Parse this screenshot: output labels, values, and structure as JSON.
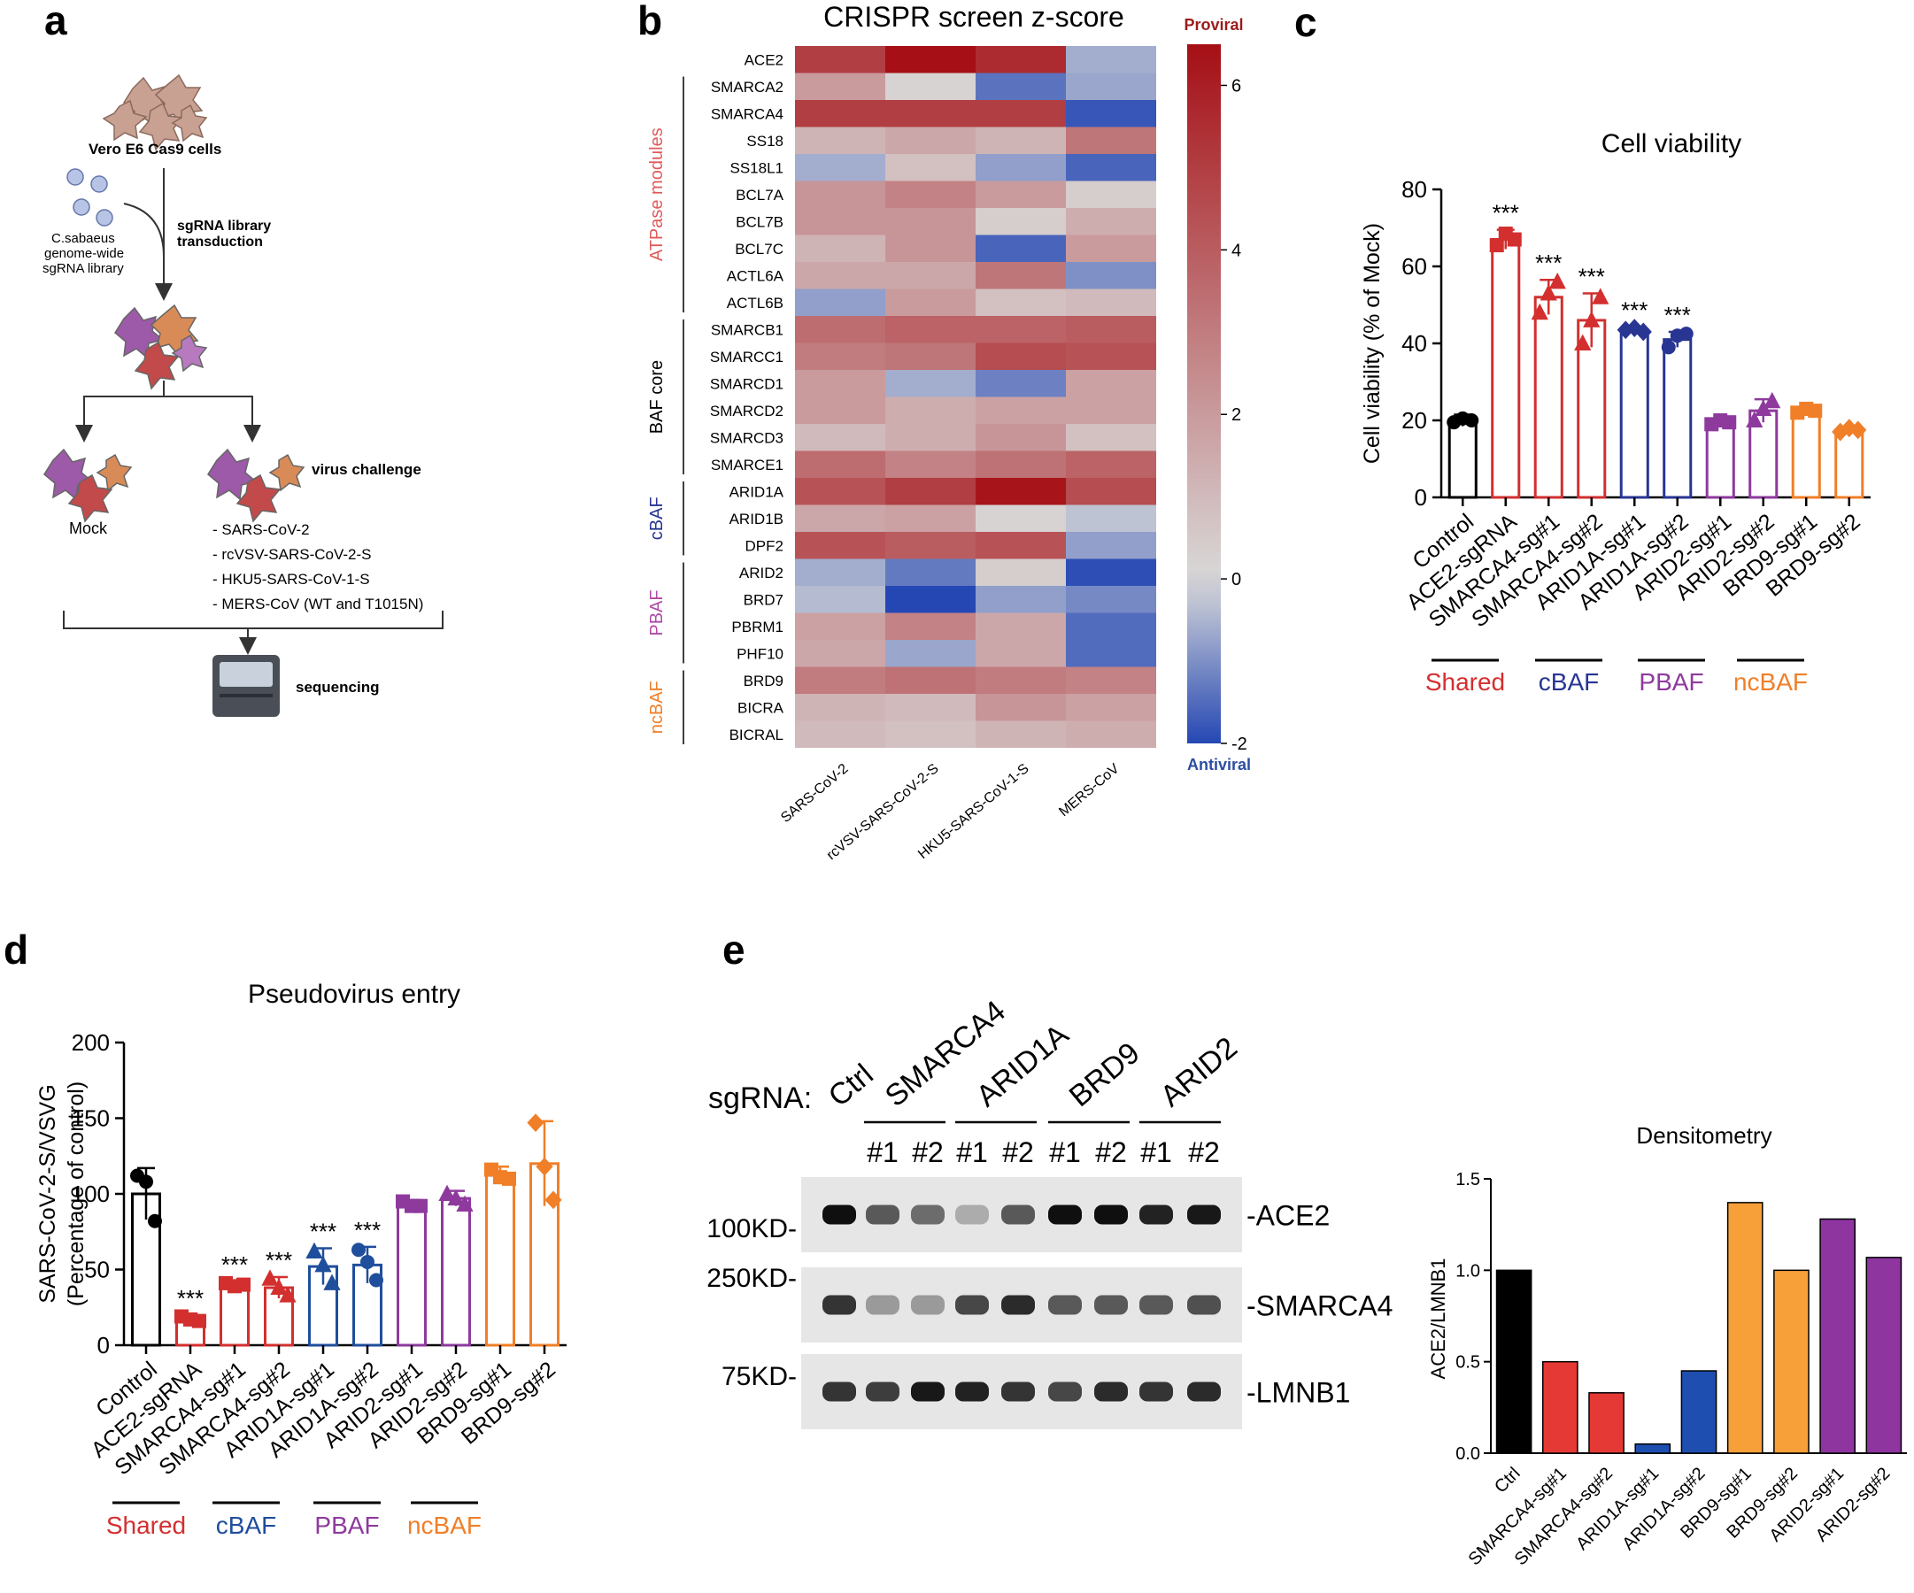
{
  "panel_letters": {
    "a": "a",
    "b": "b",
    "c": "c",
    "d": "d",
    "e": "e"
  },
  "schematic": {
    "cells": "Vero E6 Cas9 cells",
    "library": [
      "C.sabaeus",
      "genome-wide",
      "sgRNA library"
    ],
    "transduction": [
      "sgRNA library",
      "transduction"
    ],
    "mock": "Mock",
    "virus_challenge": "virus challenge",
    "viruses": [
      "- SARS-CoV-2",
      "- rcVSV-SARS-CoV-2-S",
      "- HKU5-SARS-CoV-1-S",
      "- MERS-CoV (WT and T1015N)"
    ],
    "sequencing": "sequencing"
  },
  "colors": {
    "shared": "#d32f2f",
    "cbaf": "#283593",
    "pbaf": "#8e3a9d",
    "ncbaf": "#f07f28",
    "control": "#000000",
    "heat_high": "#a50f15",
    "heat_low": "#2547b3",
    "heat_mid": "#d9d9d9"
  },
  "chart_data": [
    {
      "type": "heatmap",
      "title": "CRISPR screen z-score",
      "rows": [
        "ACE2",
        "SMARCA2",
        "SMARCA4",
        "SS18",
        "SS18L1",
        "BCL7A",
        "BCL7B",
        "BCL7C",
        "ACTL6A",
        "ACTL6B",
        "SMARCB1",
        "SMARCC1",
        "SMARCD1",
        "SMARCD2",
        "SMARCD3",
        "SMARCE1",
        "ARID1A",
        "ARID1B",
        "DPF2",
        "ARID2",
        "BRD7",
        "PBRM1",
        "PHF10",
        "BRD9",
        "BICRA",
        "BICRAL"
      ],
      "columns": [
        "SARS-CoV-2",
        "rcVSV-SARS-CoV-2-S",
        "HKU5-SARS-CoV-1-S",
        "MERS-CoV"
      ],
      "values": [
        [
          5.0,
          6.5,
          5.6,
          -0.6
        ],
        [
          2.0,
          0.2,
          -1.4,
          -0.7
        ],
        [
          5.0,
          5.0,
          5.0,
          -1.8
        ],
        [
          1.2,
          1.6,
          1.2,
          3.2
        ],
        [
          -0.6,
          0.8,
          -0.8,
          -1.6
        ],
        [
          2.2,
          2.8,
          2.0,
          0.4
        ],
        [
          2.2,
          2.2,
          0.4,
          1.4
        ],
        [
          1.2,
          2.2,
          -1.6,
          2.0
        ],
        [
          1.6,
          1.6,
          3.2,
          -1.0
        ],
        [
          -0.8,
          2.0,
          0.8,
          1.0
        ],
        [
          3.5,
          3.8,
          3.8,
          4.0
        ],
        [
          3.0,
          3.2,
          4.5,
          4.3
        ],
        [
          2.0,
          -0.6,
          -1.2,
          1.8
        ],
        [
          2.0,
          1.4,
          1.8,
          1.8
        ],
        [
          1.0,
          1.4,
          2.2,
          0.8
        ],
        [
          3.5,
          2.8,
          3.3,
          3.8
        ],
        [
          4.3,
          5.0,
          6.3,
          4.5
        ],
        [
          1.6,
          1.8,
          0.2,
          -0.3
        ],
        [
          4.3,
          4.0,
          4.3,
          -0.8
        ],
        [
          -0.6,
          -1.3,
          0.4,
          -1.9
        ],
        [
          -0.4,
          -2.2,
          -0.8,
          -1.1
        ],
        [
          1.8,
          2.8,
          1.6,
          -1.5
        ],
        [
          1.6,
          -0.7,
          1.6,
          -1.5
        ],
        [
          3.0,
          3.3,
          3.0,
          2.8
        ],
        [
          1.2,
          1.0,
          2.2,
          1.8
        ],
        [
          1.0,
          0.8,
          1.2,
          1.4
        ]
      ],
      "groups": [
        {
          "label": "ATPase modules",
          "start": 1,
          "end": 9,
          "color": "#e05a5a"
        },
        {
          "label": "BAF core",
          "start": 10,
          "end": 15,
          "color": "#000000"
        },
        {
          "label": "cBAF",
          "start": 16,
          "end": 18,
          "color": "#283593"
        },
        {
          "label": "PBAF",
          "start": 19,
          "end": 22,
          "color": "#b04aa8"
        },
        {
          "label": "ncBAF",
          "start": 23,
          "end": 25,
          "color": "#f07f28"
        }
      ],
      "colorbar": {
        "min": -2,
        "max": 6.5,
        "ticks": [
          -2,
          0,
          2,
          4,
          6
        ],
        "top_label": "Proviral",
        "bottom_label": "Antiviral"
      }
    },
    {
      "type": "bar",
      "title": "Cell viability",
      "ylabel": "Cell viability (% of Mock)",
      "ylim": [
        0,
        80
      ],
      "yticks": [
        0,
        20,
        40,
        60,
        80
      ],
      "categories": [
        "Control",
        "ACE2-sgRNA",
        "SMARCA4-sg#1",
        "SMARCA4-sg#2",
        "ARID1A-sg#1",
        "ARID1A-sg#2",
        "ARID2-sg#1",
        "ARID2-sg#2",
        "BRD9-sg#1",
        "BRD9-sg#2"
      ],
      "values": [
        20,
        67,
        52,
        46,
        43.5,
        41,
        19.5,
        22.5,
        22.5,
        17.5
      ],
      "errors": [
        1.5,
        2.5,
        4.5,
        7,
        0.8,
        2,
        1,
        3,
        0.8,
        0.8
      ],
      "points": [
        [
          19.5,
          20.5,
          20
        ],
        [
          65.5,
          68.5,
          67
        ],
        [
          48,
          53,
          56
        ],
        [
          40,
          46,
          52
        ],
        [
          43.5,
          44,
          43
        ],
        [
          39,
          42,
          42.5
        ],
        [
          19,
          20,
          19.5
        ],
        [
          20,
          23,
          25
        ],
        [
          22,
          23,
          22.5
        ],
        [
          17,
          18,
          17.5
        ]
      ],
      "markers": [
        "circle",
        "square",
        "triangle",
        "triangle",
        "diamond",
        "circle",
        "square",
        "triangle",
        "square",
        "diamond"
      ],
      "bar_colors": [
        "#000000",
        "#d32f2f",
        "#d32f2f",
        "#d32f2f",
        "#283593",
        "#283593",
        "#8e3a9d",
        "#8e3a9d",
        "#f07f28",
        "#f07f28"
      ],
      "significance": [
        "",
        "***",
        "***",
        "***",
        "***",
        "***",
        "",
        "",
        "",
        ""
      ],
      "groups": [
        {
          "label": "Shared",
          "color": "#d32f2f"
        },
        {
          "label": "cBAF",
          "color": "#283593"
        },
        {
          "label": "PBAF",
          "color": "#8e3a9d"
        },
        {
          "label": "ncBAF",
          "color": "#f07f28"
        }
      ]
    },
    {
      "type": "bar",
      "title": "Pseudovirus entry",
      "ylabel": [
        "SARS-CoV-2-S/VSVG",
        "(Percentage of control)"
      ],
      "ylim": [
        0,
        200
      ],
      "yticks": [
        0,
        50,
        100,
        150,
        200
      ],
      "categories": [
        "Control",
        "ACE2-sgRNA",
        "SMARCA4-sg#1",
        "SMARCA4-sg#2",
        "ARID1A-sg#1",
        "ARID1A-sg#2",
        "ARID2-sg#1",
        "ARID2-sg#2",
        "BRD9-sg#1",
        "BRD9-sg#2"
      ],
      "values": [
        100,
        18,
        40,
        38,
        52,
        53,
        93,
        97,
        113,
        120
      ],
      "errors": [
        17,
        2,
        2,
        7,
        12,
        12,
        3,
        5,
        5,
        28
      ],
      "points": [
        [
          112,
          108,
          82
        ],
        [
          19,
          17,
          16
        ],
        [
          41,
          39,
          40
        ],
        [
          44,
          38,
          33
        ],
        [
          62,
          53,
          41
        ],
        [
          63,
          55,
          43
        ],
        [
          95,
          92,
          92
        ],
        [
          100,
          97,
          93
        ],
        [
          116,
          111,
          110
        ],
        [
          147,
          118,
          96
        ]
      ],
      "markers": [
        "circle",
        "square",
        "square",
        "triangle",
        "triangle",
        "circle",
        "square",
        "triangle",
        "square",
        "diamond"
      ],
      "bar_colors": [
        "#000000",
        "#d32f2f",
        "#d32f2f",
        "#d32f2f",
        "#1f4e9c",
        "#1f4e9c",
        "#8e3a9d",
        "#8e3a9d",
        "#f07f28",
        "#f07f28"
      ],
      "significance": [
        "",
        "***",
        "***",
        "***",
        "***",
        "***",
        "",
        "",
        "",
        ""
      ],
      "groups": [
        {
          "label": "Shared",
          "color": "#d32f2f"
        },
        {
          "label": "cBAF",
          "color": "#1f4e9c"
        },
        {
          "label": "PBAF",
          "color": "#8e3a9d"
        },
        {
          "label": "ncBAF",
          "color": "#f07f28"
        }
      ]
    },
    {
      "type": "bar",
      "title": "Densitometry",
      "ylabel": "ACE2/LMNB1",
      "ylim": [
        0,
        1.5
      ],
      "yticks": [
        "0.0",
        "0.5",
        "1.0",
        "1.5"
      ],
      "categories": [
        "Ctrl",
        "SMARCA4-sg#1",
        "SMARCA4-sg#2",
        "ARID1A-sg#1",
        "ARID1A-sg#2",
        "BRD9-sg#1",
        "BRD9-sg#2",
        "ARID2-sg#1",
        "ARID2-sg#2"
      ],
      "values": [
        1.0,
        0.5,
        0.33,
        0.05,
        0.45,
        1.37,
        1.0,
        1.28,
        1.07
      ],
      "bar_colors": [
        "#000000",
        "#e53935",
        "#e53935",
        "#1e4fb0",
        "#1e4fb0",
        "#f7a03a",
        "#f7a03a",
        "#8e35a0",
        "#8e35a0"
      ]
    }
  ],
  "western": {
    "sgrna_label": "sgRNA:",
    "ctrl_label": "Ctrl",
    "group_labels": [
      "SMARCA4",
      "ARID1A",
      "BRD9",
      "ARID2"
    ],
    "lane_labels": [
      "#1",
      "#2",
      "#1",
      "#2",
      "#1",
      "#2",
      "#1",
      "#2"
    ],
    "blots": [
      {
        "marker": "100KD-",
        "label": "-ACE2",
        "intensities": [
          1.0,
          0.6,
          0.5,
          0.15,
          0.6,
          1.0,
          1.0,
          0.9,
          0.95
        ]
      },
      {
        "marker": "250KD-",
        "label": "-SMARCA4",
        "intensities": [
          0.8,
          0.25,
          0.25,
          0.7,
          0.85,
          0.6,
          0.6,
          0.6,
          0.65
        ]
      },
      {
        "marker": "75KD-",
        "label": "-LMNB1",
        "intensities": [
          0.8,
          0.75,
          0.95,
          0.9,
          0.8,
          0.7,
          0.85,
          0.8,
          0.85
        ]
      }
    ]
  }
}
